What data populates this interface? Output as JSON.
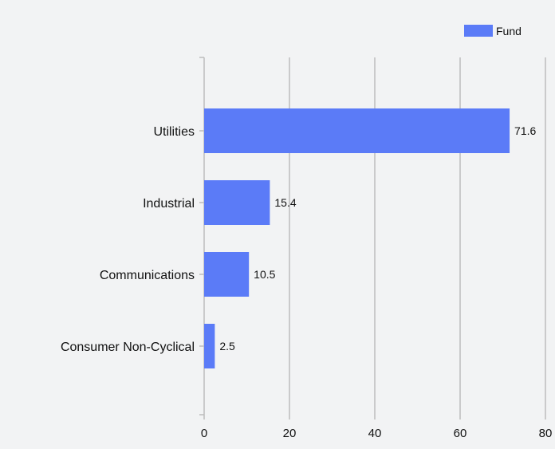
{
  "chart_data": {
    "type": "bar",
    "orientation": "horizontal",
    "categories": [
      "Utilities",
      "Industrial",
      "Communications",
      "Consumer Non-Cyclical"
    ],
    "series": [
      {
        "name": "Fund",
        "values": [
          71.6,
          15.4,
          10.5,
          2.5
        ],
        "color": "#5b7bf7"
      }
    ],
    "data_labels": [
      "71.6",
      "15.4",
      "10.5",
      "2.5"
    ],
    "xlim": [
      0,
      80
    ],
    "xticks": [
      0,
      20,
      40,
      60,
      80
    ],
    "xtick_labels": [
      "0",
      "20",
      "40",
      "60",
      "80"
    ],
    "grid": "vertical",
    "legend_position": "top-right",
    "colors": {
      "bar": "#5b7bf7",
      "grid": "#bdbdbd",
      "background": "#f2f3f4"
    }
  }
}
